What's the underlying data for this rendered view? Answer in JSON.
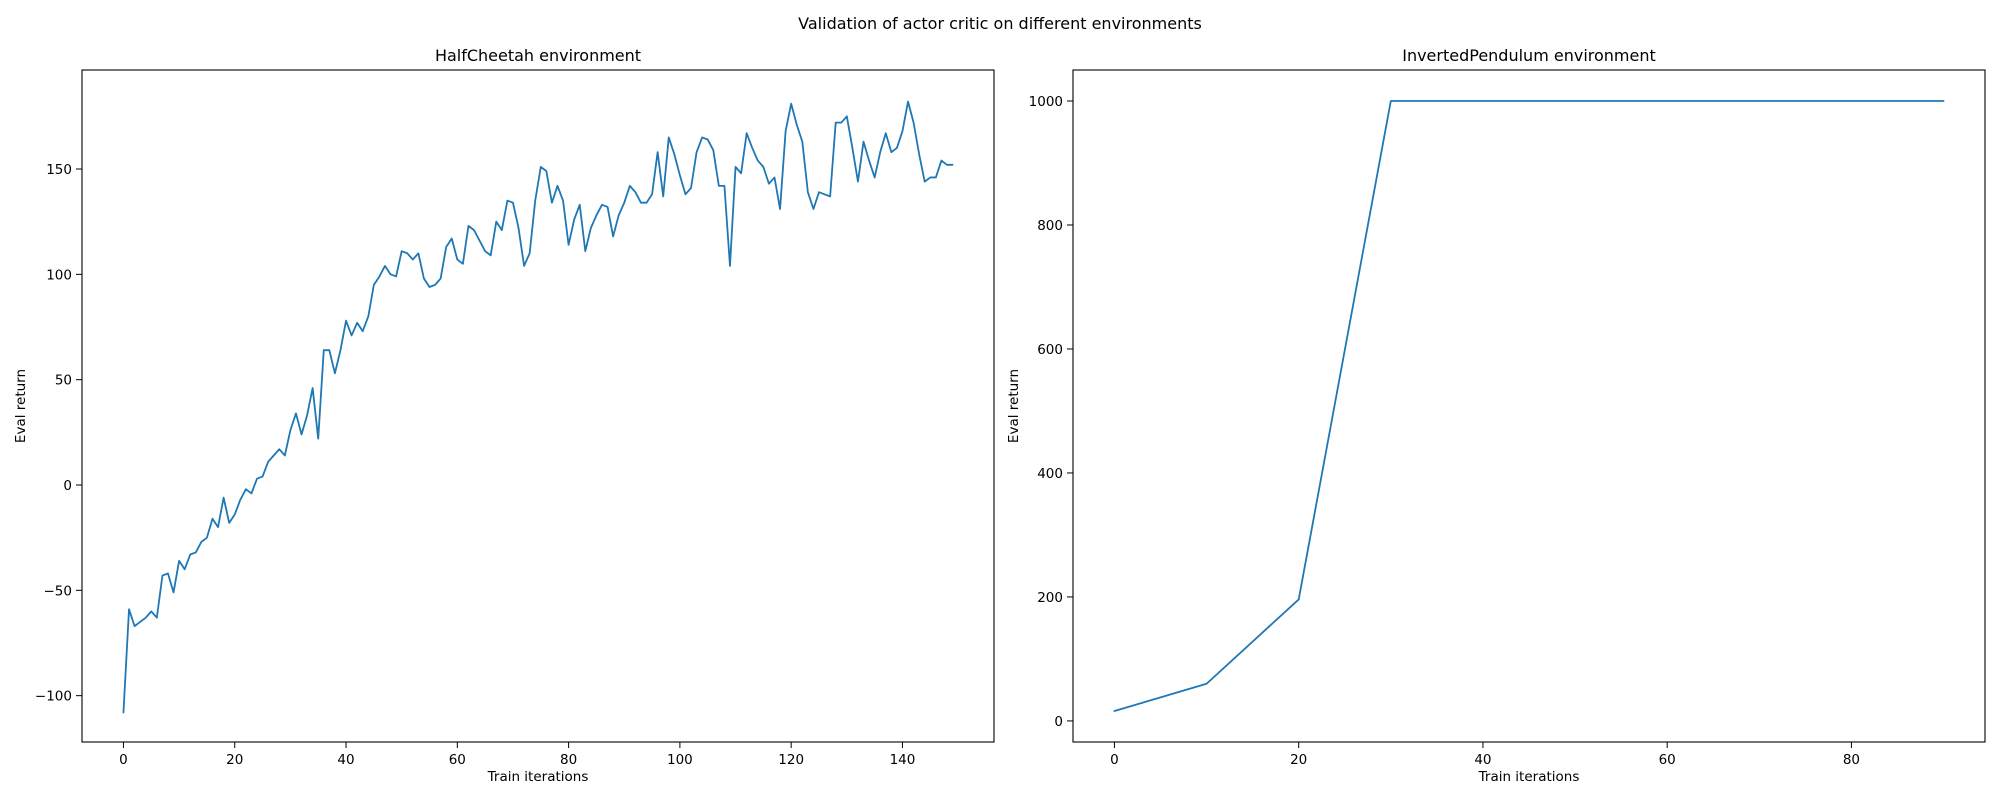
{
  "figure": {
    "suptitle": "Validation of actor critic on different environments"
  },
  "colors": {
    "series": "#1f77b4",
    "axes": "#000000",
    "background": "#ffffff"
  },
  "chart_data": [
    {
      "type": "line",
      "title": "HalfCheetah environment",
      "xlabel": "Train iterations",
      "ylabel": "Eval return",
      "xlim": [
        -7.45,
        156.45
      ],
      "ylim": [
        -122,
        197
      ],
      "xticks": [
        0,
        20,
        40,
        60,
        80,
        100,
        120,
        140
      ],
      "yticks": [
        -100,
        -50,
        0,
        50,
        100,
        150
      ],
      "grid": false,
      "series": [
        {
          "x": [
            0,
            1,
            2,
            3,
            4,
            5,
            6,
            7,
            8,
            9,
            10,
            11,
            12,
            13,
            14,
            15,
            16,
            17,
            18,
            19,
            20,
            21,
            22,
            23,
            24,
            25,
            26,
            27,
            28,
            29,
            30,
            31,
            32,
            33,
            34,
            35,
            36,
            37,
            38,
            39,
            40,
            41,
            42,
            43,
            44,
            45,
            46,
            47,
            48,
            49,
            50,
            51,
            52,
            53,
            54,
            55,
            56,
            57,
            58,
            59,
            60,
            61,
            62,
            63,
            64,
            65,
            66,
            67,
            68,
            69,
            70,
            71,
            72,
            73,
            74,
            75,
            76,
            77,
            78,
            79,
            80,
            81,
            82,
            83,
            84,
            85,
            86,
            87,
            88,
            89,
            90,
            91,
            92,
            93,
            94,
            95,
            96,
            97,
            98,
            99,
            100,
            101,
            102,
            103,
            104,
            105,
            106,
            107,
            108,
            109,
            110,
            111,
            112,
            113,
            114,
            115,
            116,
            117,
            118,
            119,
            120,
            121,
            122,
            123,
            124,
            125,
            126,
            127,
            128,
            129,
            130,
            131,
            132,
            133,
            134,
            135,
            136,
            137,
            138,
            139,
            140,
            141,
            142,
            143,
            144,
            145,
            146,
            147,
            148,
            149
          ],
          "values": [
            -108,
            -59,
            -67,
            -65,
            -63,
            -60,
            -63,
            -43,
            -42,
            -51,
            -36,
            -40,
            -33,
            -32,
            -27,
            -25,
            -16,
            -20,
            -6,
            -18,
            -14,
            -7,
            -2,
            -4,
            3,
            4,
            11,
            14,
            17,
            14,
            26,
            34,
            24,
            33,
            46,
            22,
            64,
            64,
            53,
            64,
            78,
            71,
            77,
            73,
            80,
            95,
            99,
            104,
            100,
            99,
            111,
            110,
            107,
            110,
            98,
            94,
            95,
            98,
            113,
            117,
            107,
            105,
            123,
            121,
            116,
            111,
            109,
            125,
            121,
            135,
            134,
            122,
            104,
            110,
            135,
            151,
            149,
            134,
            142,
            135,
            114,
            126,
            133,
            111,
            122,
            128,
            133,
            132,
            118,
            128,
            134,
            142,
            139,
            134,
            134,
            138,
            158,
            137,
            165,
            157,
            147,
            138,
            141,
            158,
            165,
            164,
            159,
            142,
            142,
            104,
            151,
            148,
            167,
            160,
            154,
            151,
            143,
            146,
            131,
            168,
            181,
            171,
            163,
            139,
            131,
            139,
            138,
            137,
            172,
            172,
            175,
            160,
            144,
            163,
            154,
            146,
            158,
            167,
            158,
            160,
            168,
            182,
            172,
            157,
            144,
            146,
            146,
            154,
            152,
            152
          ]
        }
      ]
    },
    {
      "type": "line",
      "title": "InvertedPendulum environment",
      "xlabel": "Train iterations",
      "ylabel": "Eval return",
      "xlim": [
        -4.5,
        94.5
      ],
      "ylim": [
        -34,
        1050
      ],
      "xticks": [
        0,
        20,
        40,
        60,
        80
      ],
      "yticks": [
        0,
        200,
        400,
        600,
        800,
        1000
      ],
      "grid": false,
      "series": [
        {
          "x": [
            0,
            10,
            20,
            30,
            40,
            50,
            60,
            70,
            80,
            90
          ],
          "values": [
            16,
            60,
            196,
            1000,
            1000,
            1000,
            1000,
            1000,
            1000,
            1000
          ]
        }
      ]
    }
  ]
}
